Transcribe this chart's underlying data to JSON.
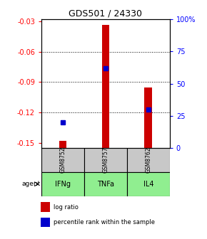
{
  "title": "GDS501 / 24330",
  "samples": [
    "GSM8752",
    "GSM8757",
    "GSM8762"
  ],
  "agents": [
    "IFNg",
    "TNFa",
    "IL4"
  ],
  "log_ratios": [
    -0.148,
    -0.034,
    -0.095
  ],
  "percentile_ranks": [
    20,
    62,
    30
  ],
  "ylim_left": [
    -0.155,
    -0.028
  ],
  "ylim_right": [
    0,
    100
  ],
  "yticks_left": [
    -0.15,
    -0.12,
    -0.09,
    -0.06,
    -0.03
  ],
  "yticks_right": [
    0,
    25,
    50,
    75,
    100
  ],
  "ytick_labels_left": [
    "-0.15",
    "-0.12",
    "-0.09",
    "-0.06",
    "-0.03"
  ],
  "ytick_labels_right": [
    "0",
    "25",
    "50",
    "75",
    "100%"
  ],
  "bar_color": "#CC0000",
  "dot_color": "#0000CC",
  "sample_box_color": "#C8C8C8",
  "agent_box_color": "#90EE90",
  "legend_bar_label": "log ratio",
  "legend_dot_label": "percentile rank within the sample"
}
